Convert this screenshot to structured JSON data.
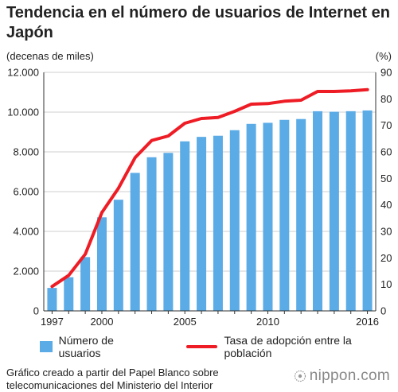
{
  "header": {
    "title": "Tendencia en el número de usuarios de Internet en Japón"
  },
  "footer": {
    "source": "Gráfico creado a partir del Papel Blanco sobre telecomunicaciones del Ministerio del Interior",
    "logo_text": "nippon.com"
  },
  "chart_data": {
    "type": "bar",
    "years": [
      1997,
      1998,
      1999,
      2000,
      2001,
      2002,
      2003,
      2004,
      2005,
      2006,
      2007,
      2008,
      2009,
      2010,
      2011,
      2012,
      2013,
      2014,
      2015,
      2016
    ],
    "x_tick_labels": [
      "1997",
      "2000",
      "2005",
      "2010",
      "2016"
    ],
    "x_tick_years": [
      1997,
      2000,
      2005,
      2010,
      2016
    ],
    "y_left_label": "(decenas de miles)",
    "y_right_label": "(%)",
    "y_left_lim": [
      0,
      12000
    ],
    "y_right_lim": [
      0,
      90
    ],
    "y_left_ticks": [
      "0",
      "2.000",
      "4.000",
      "6.000",
      "8.000",
      "10.000",
      "12.000"
    ],
    "y_right_ticks": [
      "0",
      "10",
      "20",
      "30",
      "40",
      "50",
      "60",
      "70",
      "80",
      "90"
    ],
    "grid": "horizontal",
    "legend_position": "bottom",
    "series": [
      {
        "name": "Número de usuarios",
        "type": "bar",
        "axis": "left",
        "color": "#5aabe6",
        "values": [
          1155,
          1694,
          2706,
          4708,
          5593,
          6942,
          7730,
          7948,
          8529,
          8754,
          8811,
          9091,
          9408,
          9462,
          9610,
          9652,
          10044,
          10018,
          10046,
          10084
        ]
      },
      {
        "name": "Tasa de adopción entre la población",
        "type": "line",
        "axis": "right",
        "color": "#ee1c25",
        "values": [
          9.2,
          13.4,
          21.4,
          37.1,
          46.3,
          57.8,
          64.3,
          66.0,
          70.8,
          72.6,
          73.0,
          75.3,
          78.0,
          78.2,
          79.1,
          79.5,
          82.8,
          82.8,
          83.0,
          83.5
        ]
      }
    ]
  }
}
